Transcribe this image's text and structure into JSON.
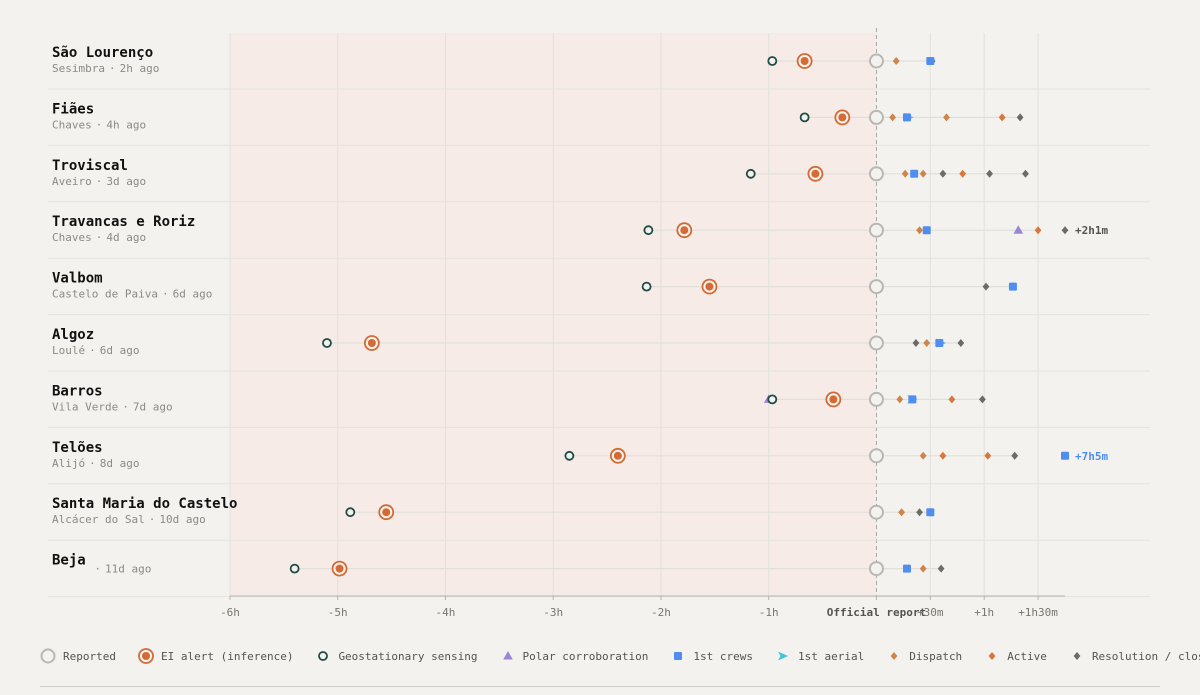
{
  "chart_data": {
    "type": "scatter",
    "title": "",
    "xlabel": "",
    "ylabel": "",
    "x_unit": "minutes relative to official report",
    "xlim": [
      -360,
      105
    ],
    "x_ticks": [
      {
        "value": -360,
        "label": "-6h"
      },
      {
        "value": -300,
        "label": "-5h"
      },
      {
        "value": -240,
        "label": "-4h"
      },
      {
        "value": -180,
        "label": "-3h"
      },
      {
        "value": -120,
        "label": "-2h"
      },
      {
        "value": -60,
        "label": "-1h"
      },
      {
        "value": 0,
        "label": "Official report"
      },
      {
        "value": 30,
        "label": "+30m"
      },
      {
        "value": 60,
        "label": "+1h"
      },
      {
        "value": 90,
        "label": "+1h30m"
      }
    ],
    "shaded_region": [
      -360,
      0
    ],
    "grid": true,
    "legend_position": "bottom",
    "series": [
      {
        "key": "reported",
        "name": "Reported",
        "color": "#b8b8b2",
        "marker": "hollow-circle"
      },
      {
        "key": "ei",
        "name": "EI alert (inference)",
        "color": "#d46a34",
        "marker": "ringed-dot"
      },
      {
        "key": "geo",
        "name": "Geostationary sensing",
        "color": "#1f4d45",
        "marker": "hollow-circle-small"
      },
      {
        "key": "polar",
        "name": "Polar corroboration",
        "color": "#9a85d6",
        "marker": "triangle"
      },
      {
        "key": "crews",
        "name": "1st crews",
        "color": "#4f8ef0",
        "marker": "square"
      },
      {
        "key": "aerial",
        "name": "1st aerial",
        "color": "#3cc6d8",
        "marker": "arrow"
      },
      {
        "key": "dispatch",
        "name": "Dispatch",
        "color": "#d0844a",
        "marker": "diamond"
      },
      {
        "key": "active",
        "name": "Active",
        "color": "#d8763c",
        "marker": "diamond"
      },
      {
        "key": "resolution",
        "name": "Resolution / closed",
        "color": "#6b6b68",
        "marker": "diamond"
      }
    ],
    "rows": [
      {
        "name": "São Lourenço",
        "region": "Sesimbra",
        "age": "2h ago",
        "events": [
          {
            "series": "geo",
            "x": -58
          },
          {
            "series": "ei",
            "x": -40
          },
          {
            "series": "reported",
            "x": 0
          },
          {
            "series": "dispatch",
            "x": 11
          },
          {
            "series": "resolution",
            "x": 31
          },
          {
            "series": "crews",
            "x": 30
          }
        ]
      },
      {
        "name": "Fiães",
        "region": "Chaves",
        "age": "4h ago",
        "events": [
          {
            "series": "geo",
            "x": -40
          },
          {
            "series": "ei",
            "x": -19
          },
          {
            "series": "reported",
            "x": 0
          },
          {
            "series": "dispatch",
            "x": 9
          },
          {
            "series": "aerial",
            "x": 18
          },
          {
            "series": "crews",
            "x": 17
          },
          {
            "series": "dispatch",
            "x": 39
          },
          {
            "series": "active",
            "x": 70
          },
          {
            "series": "resolution",
            "x": 80
          }
        ]
      },
      {
        "name": "Troviscal",
        "region": "Aveiro",
        "age": "3d ago",
        "events": [
          {
            "series": "geo",
            "x": -70
          },
          {
            "series": "ei",
            "x": -34
          },
          {
            "series": "reported",
            "x": 0
          },
          {
            "series": "dispatch",
            "x": 16
          },
          {
            "series": "crews",
            "x": 21
          },
          {
            "series": "dispatch",
            "x": 26
          },
          {
            "series": "resolution",
            "x": 37
          },
          {
            "series": "active",
            "x": 48
          },
          {
            "series": "resolution",
            "x": 63
          },
          {
            "series": "resolution",
            "x": 83
          }
        ]
      },
      {
        "name": "Travancas e Roriz",
        "region": "Chaves",
        "age": "4d ago",
        "events": [
          {
            "series": "geo",
            "x": -127
          },
          {
            "series": "ei",
            "x": -107
          },
          {
            "series": "reported",
            "x": 0
          },
          {
            "series": "dispatch",
            "x": 24
          },
          {
            "series": "crews",
            "x": 28
          },
          {
            "series": "polar",
            "x": 79
          },
          {
            "series": "active",
            "x": 90
          },
          {
            "series": "resolution",
            "x": 121,
            "overflow_label": "+2h1m"
          }
        ]
      },
      {
        "name": "Valbom",
        "region": "Castelo de Paiva",
        "age": "6d ago",
        "events": [
          {
            "series": "geo",
            "x": -128
          },
          {
            "series": "ei",
            "x": -93
          },
          {
            "series": "reported",
            "x": 0
          },
          {
            "series": "resolution",
            "x": 61
          },
          {
            "series": "crews",
            "x": 76
          }
        ]
      },
      {
        "name": "Algoz",
        "region": "Loulé",
        "age": "6d ago",
        "events": [
          {
            "series": "geo",
            "x": -306
          },
          {
            "series": "ei",
            "x": -281
          },
          {
            "series": "reported",
            "x": 0
          },
          {
            "series": "resolution",
            "x": 22
          },
          {
            "series": "dispatch",
            "x": 28
          },
          {
            "series": "aerial",
            "x": 36
          },
          {
            "series": "crews",
            "x": 35
          },
          {
            "series": "resolution",
            "x": 47
          }
        ]
      },
      {
        "name": "Barros",
        "region": "Vila Verde",
        "age": "7d ago",
        "events": [
          {
            "series": "polar",
            "x": -60
          },
          {
            "series": "geo",
            "x": -58
          },
          {
            "series": "ei",
            "x": -24
          },
          {
            "series": "reported",
            "x": 0
          },
          {
            "series": "dispatch",
            "x": 13
          },
          {
            "series": "aerial",
            "x": 20
          },
          {
            "series": "crews",
            "x": 20
          },
          {
            "series": "active",
            "x": 42
          },
          {
            "series": "resolution",
            "x": 59
          }
        ]
      },
      {
        "name": "Telões",
        "region": "Alijó",
        "age": "8d ago",
        "events": [
          {
            "series": "geo",
            "x": -171
          },
          {
            "series": "ei",
            "x": -144
          },
          {
            "series": "reported",
            "x": 0
          },
          {
            "series": "dispatch",
            "x": 26
          },
          {
            "series": "active",
            "x": 37
          },
          {
            "series": "active",
            "x": 62
          },
          {
            "series": "resolution",
            "x": 77
          },
          {
            "series": "crews",
            "x": 425,
            "overflow_label": "+7h5m"
          }
        ]
      },
      {
        "name": "Santa Maria do Castelo",
        "region": "Alcácer do Sal",
        "age": "10d ago",
        "events": [
          {
            "series": "geo",
            "x": -293
          },
          {
            "series": "ei",
            "x": -273
          },
          {
            "series": "reported",
            "x": 0
          },
          {
            "series": "dispatch",
            "x": 14
          },
          {
            "series": "resolution",
            "x": 24
          },
          {
            "series": "crews",
            "x": 30
          }
        ]
      },
      {
        "name": "Beja",
        "region": "",
        "age": "11d ago",
        "events": [
          {
            "series": "geo",
            "x": -324
          },
          {
            "series": "ei",
            "x": -299
          },
          {
            "series": "reported",
            "x": 0
          },
          {
            "series": "crews",
            "x": 17
          },
          {
            "series": "dispatch",
            "x": 26
          },
          {
            "series": "resolution",
            "x": 36
          }
        ]
      }
    ]
  },
  "legend": [
    {
      "key": "reported",
      "label": "Reported",
      "icon": "hollow-circle-icon"
    },
    {
      "key": "ei",
      "label": "EI alert (inference)",
      "icon": "ringed-dot-icon"
    },
    {
      "key": "geo",
      "label": "Geostationary sensing",
      "icon": "small-hollow-circle-icon"
    },
    {
      "key": "polar",
      "label": "Polar corroboration",
      "icon": "triangle-icon"
    },
    {
      "key": "crews",
      "label": "1st crews",
      "icon": "square-icon"
    },
    {
      "key": "aerial",
      "label": "1st aerial",
      "icon": "arrow-icon"
    },
    {
      "key": "dispatch",
      "label": "Dispatch",
      "icon": "diamond-icon"
    },
    {
      "key": "active",
      "label": "Active",
      "icon": "diamond-icon"
    },
    {
      "key": "resolution",
      "label": "Resolution / closed",
      "icon": "diamond-icon"
    }
  ]
}
